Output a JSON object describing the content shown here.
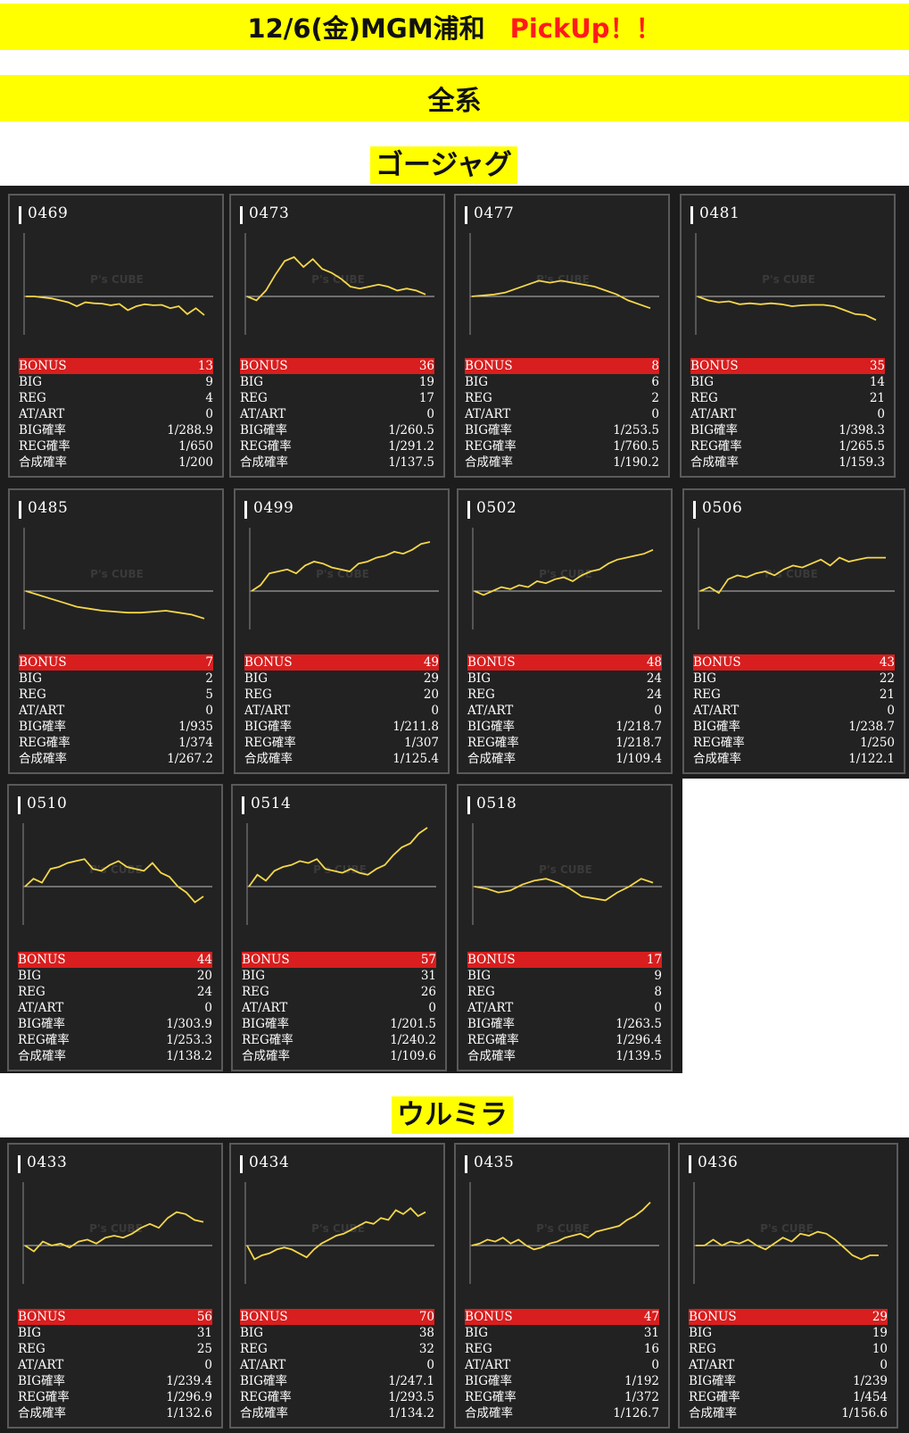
{
  "header": {
    "title": "12/6(金)MGM浦和",
    "pickup": "PickUp！！",
    "category": "全系"
  },
  "colors": {
    "banner": "#ffff00",
    "pickup": "#ff1a1a",
    "bonus_bar": "#d81e1e",
    "graph_line": "#f5d74a"
  },
  "stat_labels": {
    "bonus": "BONUS",
    "big": "BIG",
    "reg": "REG",
    "at": "AT/ART",
    "big_rate": "BIG確率",
    "reg_rate": "REG確率",
    "total_rate": "合成確率"
  },
  "watermark": "P's CUBE",
  "sections": [
    {
      "title": "ゴージャグ",
      "machines": [
        {
          "number": "0469",
          "bonus": "13",
          "big": "9",
          "reg": "4",
          "at": "0",
          "big_rate": "1/288.9",
          "reg_rate": "1/650",
          "total_rate": "1/200",
          "graph": [
            0,
            0,
            -0.5,
            -1,
            -2,
            -3,
            -5,
            -3,
            -3.5,
            -3.7,
            -4.5,
            -3.8,
            -7,
            -5,
            -4,
            -4.5,
            -4.3,
            -6,
            -5,
            -9,
            -6,
            -9.5
          ]
        },
        {
          "number": "0473",
          "bonus": "36",
          "big": "19",
          "reg": "17",
          "at": "0",
          "big_rate": "1/260.5",
          "reg_rate": "1/291.2",
          "total_rate": "1/137.5",
          "graph": [
            0,
            -2,
            3,
            11,
            18,
            20,
            15,
            19,
            14,
            12,
            9,
            5,
            4,
            5,
            6,
            5,
            3,
            4,
            3,
            1
          ]
        },
        {
          "number": "0477",
          "bonus": "8",
          "big": "6",
          "reg": "2",
          "at": "0",
          "big_rate": "1/253.5",
          "reg_rate": "1/760.5",
          "total_rate": "1/190.2",
          "graph": [
            0,
            0.5,
            1,
            2,
            4,
            6,
            8,
            7,
            8,
            7,
            6,
            5,
            3,
            1,
            -2,
            -4,
            -6
          ]
        },
        {
          "number": "0481",
          "bonus": "35",
          "big": "14",
          "reg": "21",
          "at": "0",
          "big_rate": "1/398.3",
          "reg_rate": "1/265.5",
          "total_rate": "1/159.3",
          "graph": [
            0,
            -2,
            -3,
            -2.5,
            -4,
            -3.5,
            -4,
            -3.5,
            -4,
            -5,
            -4.5,
            -4.3,
            -4.3,
            -5,
            -7,
            -9,
            -9.5,
            -12
          ]
        },
        {
          "number": "0485",
          "bonus": "7",
          "big": "2",
          "reg": "5",
          "at": "0",
          "big_rate": "1/935",
          "reg_rate": "1/374",
          "total_rate": "1/267.2",
          "graph": [
            0,
            -2,
            -4,
            -6,
            -8,
            -9,
            -10,
            -10.5,
            -11,
            -11,
            -10.5,
            -10,
            -11,
            -12,
            -14
          ]
        },
        {
          "number": "0499",
          "bonus": "49",
          "big": "29",
          "reg": "20",
          "at": "0",
          "big_rate": "1/211.8",
          "reg_rate": "1/307",
          "total_rate": "1/125.4",
          "graph": [
            0,
            3,
            9,
            10,
            11,
            9,
            13,
            15,
            14,
            12,
            11,
            10,
            14,
            15,
            17,
            18,
            20,
            19,
            21,
            24,
            25
          ]
        },
        {
          "number": "0502",
          "bonus": "48",
          "big": "24",
          "reg": "24",
          "at": "0",
          "big_rate": "1/218.7",
          "reg_rate": "1/218.7",
          "total_rate": "1/109.4",
          "graph": [
            0,
            -2,
            0,
            2,
            1,
            3,
            2,
            5,
            4,
            6,
            7,
            5,
            8,
            10,
            11,
            14,
            16,
            17,
            18,
            19,
            21
          ]
        },
        {
          "number": "0506",
          "bonus": "43",
          "big": "22",
          "reg": "21",
          "at": "0",
          "big_rate": "1/238.7",
          "reg_rate": "1/250",
          "total_rate": "1/122.1",
          "graph": [
            0,
            2,
            -1,
            6,
            8,
            7,
            9,
            10,
            8,
            11,
            13,
            12,
            14,
            16,
            13,
            17,
            15,
            16,
            17,
            17,
            17
          ]
        },
        {
          "number": "0510",
          "bonus": "44",
          "big": "20",
          "reg": "24",
          "at": "0",
          "big_rate": "1/303.9",
          "reg_rate": "1/253.3",
          "total_rate": "1/138.2",
          "graph": [
            0,
            4,
            2,
            9,
            10,
            12,
            13,
            14,
            9,
            8,
            11,
            13,
            10,
            9,
            8,
            12,
            7,
            5,
            0,
            -3,
            -8,
            -5
          ]
        },
        {
          "number": "0514",
          "bonus": "57",
          "big": "31",
          "reg": "26",
          "at": "0",
          "big_rate": "1/201.5",
          "reg_rate": "1/240.2",
          "total_rate": "1/109.6",
          "graph": [
            0,
            6,
            3,
            8,
            10,
            11,
            13,
            12,
            14,
            9,
            8,
            7,
            9,
            7,
            6,
            9,
            11,
            16,
            20,
            22,
            27,
            30
          ]
        },
        {
          "number": "0518",
          "bonus": "17",
          "big": "9",
          "reg": "8",
          "at": "0",
          "big_rate": "1/263.5",
          "reg_rate": "1/296.4",
          "total_rate": "1/139.5",
          "graph": [
            0,
            -1,
            -3,
            -2,
            1,
            3,
            4,
            2,
            -1,
            -5,
            -6,
            -7,
            -3,
            0,
            4,
            2
          ]
        }
      ]
    },
    {
      "title": "ウルミラ",
      "machines": [
        {
          "number": "0433",
          "bonus": "56",
          "big": "31",
          "reg": "25",
          "at": "0",
          "big_rate": "1/239.4",
          "reg_rate": "1/296.9",
          "total_rate": "1/132.6",
          "graph": [
            0,
            -3,
            2,
            0,
            1,
            -1,
            2,
            3,
            1,
            4,
            5,
            4,
            6,
            9,
            11,
            9,
            14,
            17,
            16,
            13,
            12
          ]
        },
        {
          "number": "0434",
          "bonus": "70",
          "big": "38",
          "reg": "32",
          "at": "0",
          "big_rate": "1/247.1",
          "reg_rate": "1/293.5",
          "total_rate": "1/134.2",
          "graph": [
            0,
            -7,
            -5,
            -4,
            -2,
            -1,
            -2,
            -4,
            -6,
            -2,
            1,
            3,
            5,
            6,
            8,
            10,
            12,
            11,
            14,
            13,
            18,
            16,
            19,
            15,
            17
          ]
        },
        {
          "number": "0435",
          "bonus": "47",
          "big": "31",
          "reg": "16",
          "at": "0",
          "big_rate": "1/192",
          "reg_rate": "1/372",
          "total_rate": "1/126.7",
          "graph": [
            0,
            1,
            3,
            2,
            4,
            1,
            3,
            0,
            -2,
            -1,
            1,
            2,
            4,
            5,
            6,
            4,
            7,
            8,
            9,
            10,
            13,
            15,
            18,
            22
          ]
        },
        {
          "number": "0436",
          "bonus": "29",
          "big": "19",
          "reg": "10",
          "at": "0",
          "big_rate": "1/239",
          "reg_rate": "1/454",
          "total_rate": "1/156.6",
          "graph": [
            0,
            0,
            3,
            0,
            2,
            1,
            3,
            0,
            -2,
            1,
            4,
            2,
            6,
            5,
            7,
            6,
            3,
            -1,
            -5,
            -7,
            -5,
            -5
          ]
        }
      ]
    }
  ]
}
